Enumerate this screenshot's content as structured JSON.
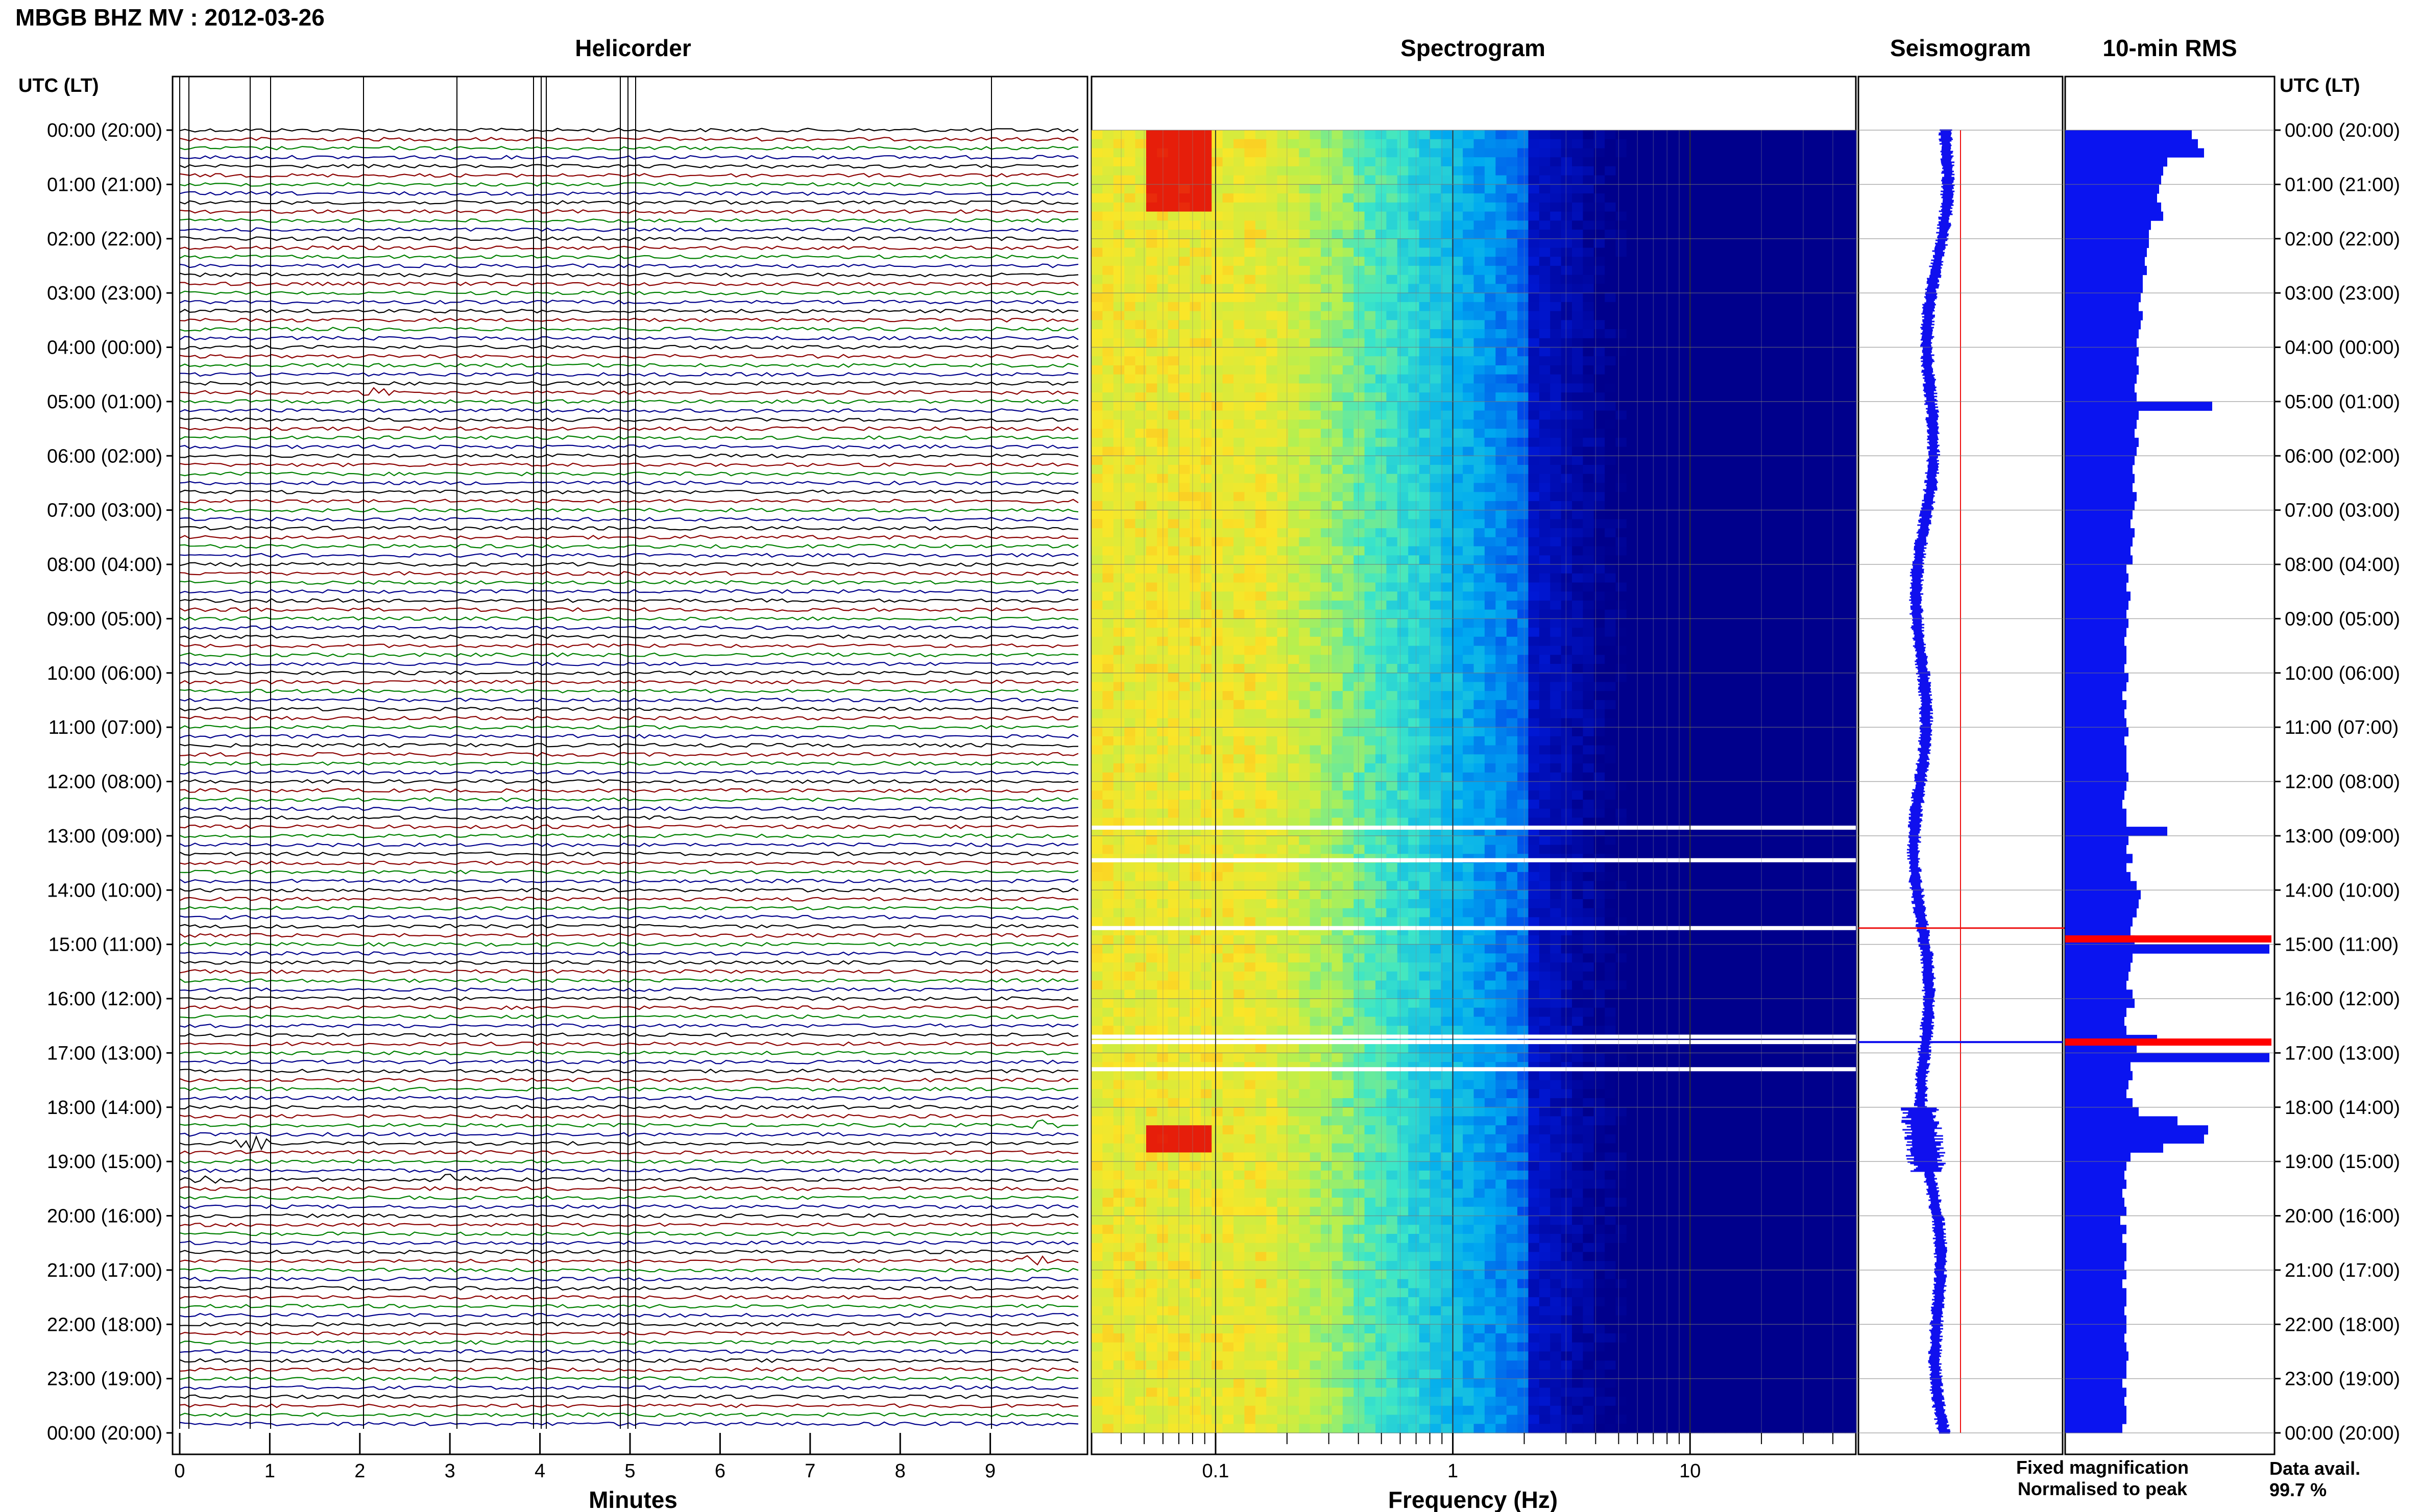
{
  "title": "MBGB BHZ MV : 2012-03-26",
  "panels": {
    "helicorder": "Helicorder",
    "spectrogram": "Spectrogram",
    "seismogram": "Seismogram",
    "rms": "10-min RMS"
  },
  "time_axis_label": "UTC (LT)",
  "time_labels": [
    "00:00 (20:00)",
    "01:00 (21:00)",
    "02:00 (22:00)",
    "03:00 (23:00)",
    "04:00 (00:00)",
    "05:00 (01:00)",
    "06:00 (02:00)",
    "07:00 (03:00)",
    "08:00 (04:00)",
    "09:00 (05:00)",
    "10:00 (06:00)",
    "11:00 (07:00)",
    "12:00 (08:00)",
    "13:00 (09:00)",
    "14:00 (10:00)",
    "15:00 (11:00)",
    "16:00 (12:00)",
    "17:00 (13:00)",
    "18:00 (14:00)",
    "19:00 (15:00)",
    "20:00 (16:00)",
    "21:00 (17:00)",
    "22:00 (18:00)",
    "23:00 (19:00)",
    "00:00 (20:00)"
  ],
  "legend": {
    "fixed": "Fixed magnification",
    "normalised": "Normalised to peak",
    "fixed_color": "#1010ee",
    "normalised_color": "#ee1010"
  },
  "data_avail": {
    "label": "Data avail.",
    "value": "99.7 %"
  },
  "colors": {
    "trace_cycle": [
      "#000000",
      "#8b0000",
      "#008000",
      "#00008b"
    ],
    "rms_bar": "#0a14f0",
    "rms_peak": "#ff0000"
  },
  "chart_data": [
    {
      "type": "line",
      "panel": "Helicorder",
      "xlabel": "Minutes",
      "x_ticks": [
        0,
        1,
        2,
        3,
        4,
        5,
        6,
        7,
        8,
        9
      ],
      "xlim": [
        0,
        10
      ],
      "rows_per_hour": 6,
      "hours": 24,
      "events": [
        {
          "row_hour": 4.9,
          "minute": 2.2,
          "note": "long-period bump"
        },
        {
          "row_hour": 18.3,
          "minute": 9.5
        },
        {
          "row_hour": 18.7,
          "minute": 0.8
        },
        {
          "row_hour": 19.3,
          "minute": 0.3
        },
        {
          "row_hour": 19.3,
          "minute": 3.0
        },
        {
          "row_hour": 20.8,
          "minute": 9.4
        }
      ]
    },
    {
      "type": "heatmap",
      "panel": "Spectrogram",
      "xlabel": "Frequency (Hz)",
      "x_scale": "log",
      "x_ticks": [
        0.1,
        1,
        10
      ],
      "xlim": [
        0.03,
        50
      ],
      "gaps_hours": [
        12.85,
        13.45,
        14.7,
        16.7,
        16.8,
        17.3
      ]
    },
    {
      "type": "line",
      "panel": "Seismogram"
    },
    {
      "type": "bar",
      "panel": "10-min RMS",
      "orientation": "horizontal",
      "rms_relative": [
        0.62,
        0.65,
        0.68,
        0.5,
        0.48,
        0.47,
        0.46,
        0.45,
        0.47,
        0.48,
        0.42,
        0.41,
        0.41,
        0.4,
        0.39,
        0.4,
        0.38,
        0.38,
        0.37,
        0.36,
        0.38,
        0.37,
        0.36,
        0.35,
        0.36,
        0.35,
        0.36,
        0.35,
        0.34,
        0.35,
        0.72,
        0.36,
        0.35,
        0.34,
        0.36,
        0.35,
        0.34,
        0.33,
        0.34,
        0.33,
        0.35,
        0.34,
        0.33,
        0.32,
        0.34,
        0.33,
        0.32,
        0.33,
        0.3,
        0.31,
        0.3,
        0.32,
        0.31,
        0.3,
        0.31,
        0.3,
        0.29,
        0.3,
        0.3,
        0.29,
        0.31,
        0.3,
        0.28,
        0.3,
        0.29,
        0.3,
        0.31,
        0.29,
        0.3,
        0.3,
        0.3,
        0.31,
        0.3,
        0.29,
        0.28,
        0.3,
        0.3,
        0.5,
        0.31,
        0.3,
        0.33,
        0.3,
        0.32,
        0.35,
        0.37,
        0.36,
        0.35,
        0.33,
        0.32,
        0.34,
        1.0,
        0.33,
        0.32,
        0.31,
        0.3,
        0.33,
        0.34,
        0.3,
        0.29,
        0.3,
        0.45,
        0.35,
        1.0,
        0.32,
        0.33,
        0.31,
        0.3,
        0.33,
        0.36,
        0.55,
        0.7,
        0.68,
        0.48,
        0.32,
        0.3,
        0.29,
        0.3,
        0.28,
        0.29,
        0.3,
        0.27,
        0.3,
        0.28,
        0.3,
        0.3,
        0.29,
        0.3,
        0.28,
        0.3,
        0.3,
        0.29,
        0.3,
        0.3,
        0.29,
        0.3,
        0.31,
        0.3,
        0.3,
        0.28,
        0.3,
        0.29,
        0.3,
        0.3,
        0.28
      ],
      "peak_rows_hours": [
        14.9,
        16.8
      ]
    }
  ]
}
